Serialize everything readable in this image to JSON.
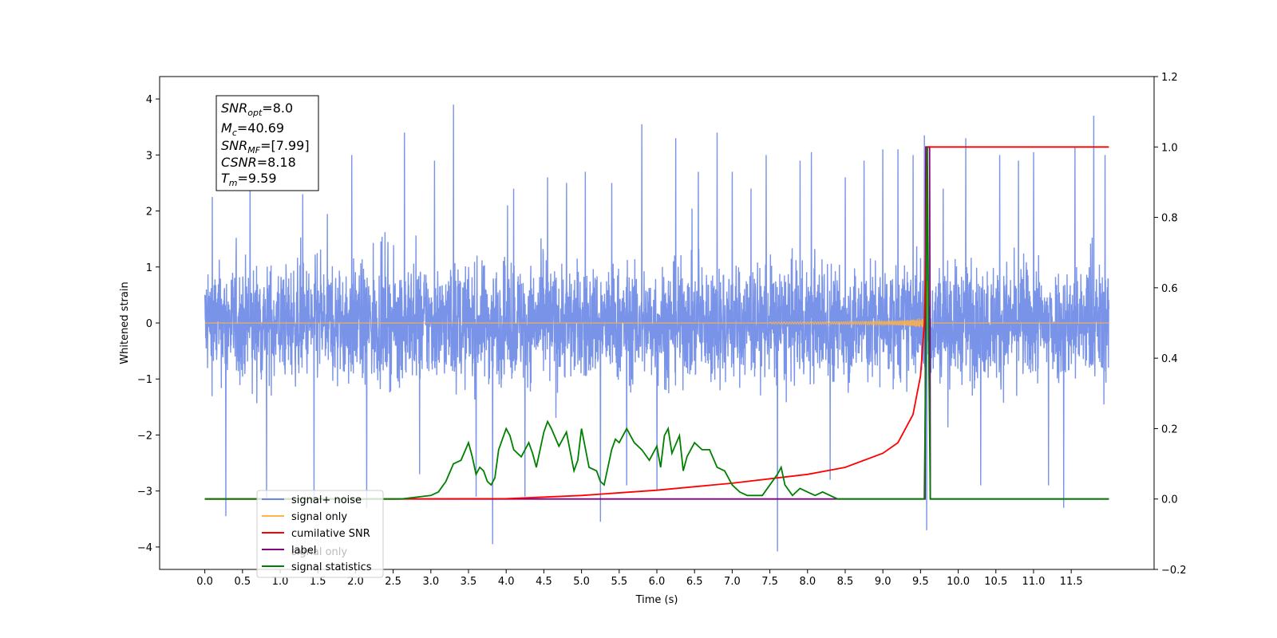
{
  "chart_data": {
    "type": "line",
    "xlabel": "Time (s)",
    "ylabel": "Whitened strain",
    "ylabel_right": "",
    "xlim": [
      -0.6,
      12.6
    ],
    "ylim": [
      -4.4,
      4.4
    ],
    "ylim_right": [
      -0.2,
      1.2
    ],
    "x_ticks": [
      "0.0",
      "0.5",
      "1.0",
      "1.5",
      "2.0",
      "2.5",
      "3.0",
      "3.5",
      "4.0",
      "4.5",
      "5.0",
      "5.5",
      "6.0",
      "6.5",
      "7.0",
      "7.5",
      "8.0",
      "8.5",
      "9.0",
      "9.5",
      "10.0",
      "10.5",
      "11.0",
      "11.5"
    ],
    "y_ticks": [
      "−4",
      "−3",
      "−2",
      "−1",
      "0",
      "1",
      "2",
      "3",
      "4"
    ],
    "y_ticks_right": [
      "−0.2",
      "0.0",
      "0.2",
      "0.4",
      "0.6",
      "0.8",
      "1.0",
      "1.2"
    ],
    "info_box": {
      "snr_opt": {
        "name": "SNR",
        "sub": "opt",
        "value": "=8.0"
      },
      "mc": {
        "name": "M",
        "sub": "c",
        "value": "=40.69"
      },
      "snr_mf": {
        "name": "SNR",
        "sub": "MF",
        "value": "=[7.99]"
      },
      "csnr": {
        "name": "CSNR",
        "sub": "",
        "value": "=8.18"
      },
      "tm": {
        "name": "T",
        "sub": "m",
        "value": "=9.59"
      }
    },
    "legend": {
      "position": "lower-left",
      "entries": [
        {
          "label": "signal+ noise",
          "color": "#6a87e6"
        },
        {
          "label": "signal only",
          "color": "#ffb347"
        },
        {
          "label": "cumilative SNR",
          "color": "#ff0000"
        },
        {
          "label": "label",
          "color": "#800080"
        },
        {
          "label": "signal statistics",
          "color": "#008000"
        }
      ],
      "ghost_text": "signal only"
    },
    "series": [
      {
        "name": "signal+ noise",
        "axis": "left",
        "color": "#6a87e6",
        "description_values": {
          "t_start": 0.0,
          "t_end": 12.0,
          "typical_range": [
            -1.6,
            1.6
          ],
          "max": 3.9,
          "min": -4.08
        },
        "spikes": [
          [
            0.1,
            2.25
          ],
          [
            0.28,
            -3.45
          ],
          [
            0.6,
            2.6
          ],
          [
            0.82,
            -3.15
          ],
          [
            1.3,
            2.3
          ],
          [
            1.45,
            -3.2
          ],
          [
            1.95,
            3.0
          ],
          [
            2.15,
            -3.3
          ],
          [
            2.65,
            3.4
          ],
          [
            2.85,
            -2.7
          ],
          [
            3.05,
            2.9
          ],
          [
            3.3,
            3.9
          ],
          [
            3.6,
            -3.1
          ],
          [
            3.82,
            -3.95
          ],
          [
            4.1,
            2.4
          ],
          [
            4.25,
            -3.1
          ],
          [
            4.55,
            2.6
          ],
          [
            4.8,
            2.5
          ],
          [
            5.05,
            2.7
          ],
          [
            5.25,
            -3.55
          ],
          [
            5.4,
            2.5
          ],
          [
            5.6,
            -2.9
          ],
          [
            5.8,
            3.55
          ],
          [
            6.0,
            -3.0
          ],
          [
            6.25,
            3.3
          ],
          [
            6.55,
            2.7
          ],
          [
            6.8,
            3.4
          ],
          [
            7.0,
            2.7
          ],
          [
            7.25,
            2.4
          ],
          [
            7.45,
            3.0
          ],
          [
            7.6,
            -4.08
          ],
          [
            7.9,
            2.9
          ],
          [
            8.05,
            3.05
          ],
          [
            8.3,
            -2.8
          ],
          [
            8.5,
            2.6
          ],
          [
            8.75,
            2.9
          ],
          [
            9.0,
            3.1
          ],
          [
            9.2,
            3.1
          ],
          [
            9.4,
            3.0
          ],
          [
            9.55,
            3.35
          ],
          [
            9.58,
            -3.7
          ],
          [
            9.8,
            2.4
          ],
          [
            10.1,
            3.3
          ],
          [
            10.3,
            -2.9
          ],
          [
            10.55,
            3.0
          ],
          [
            10.8,
            2.9
          ],
          [
            11.0,
            3.05
          ],
          [
            11.2,
            -2.9
          ],
          [
            11.4,
            -3.3
          ],
          [
            11.55,
            3.15
          ],
          [
            11.8,
            3.7
          ],
          [
            11.95,
            3.0
          ]
        ]
      },
      {
        "name": "signal only",
        "axis": "left",
        "color": "#ffb347",
        "description_values": {
          "baseline": 0.0,
          "chirp_start": 7.5,
          "merger_time": 9.59,
          "peak_amplitude": 0.9
        }
      },
      {
        "name": "cumilative SNR",
        "axis": "right",
        "color": "#ff0000",
        "x": [
          0.0,
          2.5,
          4.0,
          5.0,
          6.0,
          7.0,
          8.0,
          8.5,
          9.0,
          9.2,
          9.4,
          9.5,
          9.55,
          9.57,
          9.58,
          9.59,
          10.0,
          12.0
        ],
        "values": [
          0.0,
          0.0,
          0.001,
          0.01,
          0.025,
          0.045,
          0.07,
          0.09,
          0.13,
          0.16,
          0.24,
          0.35,
          0.5,
          0.7,
          0.9,
          1.0,
          1.0,
          1.0
        ]
      },
      {
        "name": "label",
        "axis": "right",
        "color": "#800080",
        "x": [
          0.0,
          9.5,
          9.56,
          9.57,
          9.62,
          9.63,
          12.0
        ],
        "values": [
          0.0,
          0.0,
          0.0,
          1.0,
          1.0,
          0.0,
          0.0
        ]
      },
      {
        "name": "signal statistics",
        "axis": "right",
        "color": "#008000",
        "x": [
          0.0,
          2.4,
          2.6,
          2.8,
          3.0,
          3.1,
          3.2,
          3.3,
          3.4,
          3.5,
          3.55,
          3.6,
          3.65,
          3.7,
          3.75,
          3.8,
          3.85,
          3.9,
          4.0,
          4.05,
          4.1,
          4.2,
          4.3,
          4.35,
          4.4,
          4.5,
          4.55,
          4.6,
          4.7,
          4.8,
          4.9,
          4.95,
          5.0,
          5.1,
          5.2,
          5.25,
          5.3,
          5.4,
          5.45,
          5.5,
          5.6,
          5.7,
          5.8,
          5.9,
          6.0,
          6.05,
          6.1,
          6.15,
          6.2,
          6.3,
          6.35,
          6.4,
          6.5,
          6.6,
          6.7,
          6.8,
          6.9,
          7.0,
          7.1,
          7.2,
          7.3,
          7.4,
          7.5,
          7.6,
          7.65,
          7.7,
          7.8,
          7.9,
          8.0,
          8.1,
          8.2,
          8.4,
          8.6,
          9.0,
          9.5,
          9.55,
          9.57,
          9.59,
          9.61,
          9.63,
          9.65,
          12.0
        ],
        "values": [
          0.0,
          0.0,
          0.0,
          0.005,
          0.01,
          0.02,
          0.05,
          0.1,
          0.11,
          0.16,
          0.12,
          0.07,
          0.09,
          0.08,
          0.05,
          0.04,
          0.06,
          0.14,
          0.2,
          0.18,
          0.14,
          0.12,
          0.16,
          0.13,
          0.09,
          0.19,
          0.22,
          0.2,
          0.15,
          0.19,
          0.08,
          0.11,
          0.2,
          0.09,
          0.08,
          0.05,
          0.04,
          0.14,
          0.17,
          0.16,
          0.2,
          0.16,
          0.14,
          0.11,
          0.15,
          0.09,
          0.18,
          0.2,
          0.13,
          0.18,
          0.08,
          0.12,
          0.16,
          0.14,
          0.14,
          0.09,
          0.08,
          0.04,
          0.02,
          0.01,
          0.01,
          0.01,
          0.04,
          0.07,
          0.09,
          0.04,
          0.01,
          0.03,
          0.02,
          0.01,
          0.02,
          0.0,
          0.0,
          0.0,
          0.0,
          0.0,
          0.4,
          1.0,
          0.4,
          0.0,
          0.0,
          0.0
        ]
      }
    ]
  }
}
